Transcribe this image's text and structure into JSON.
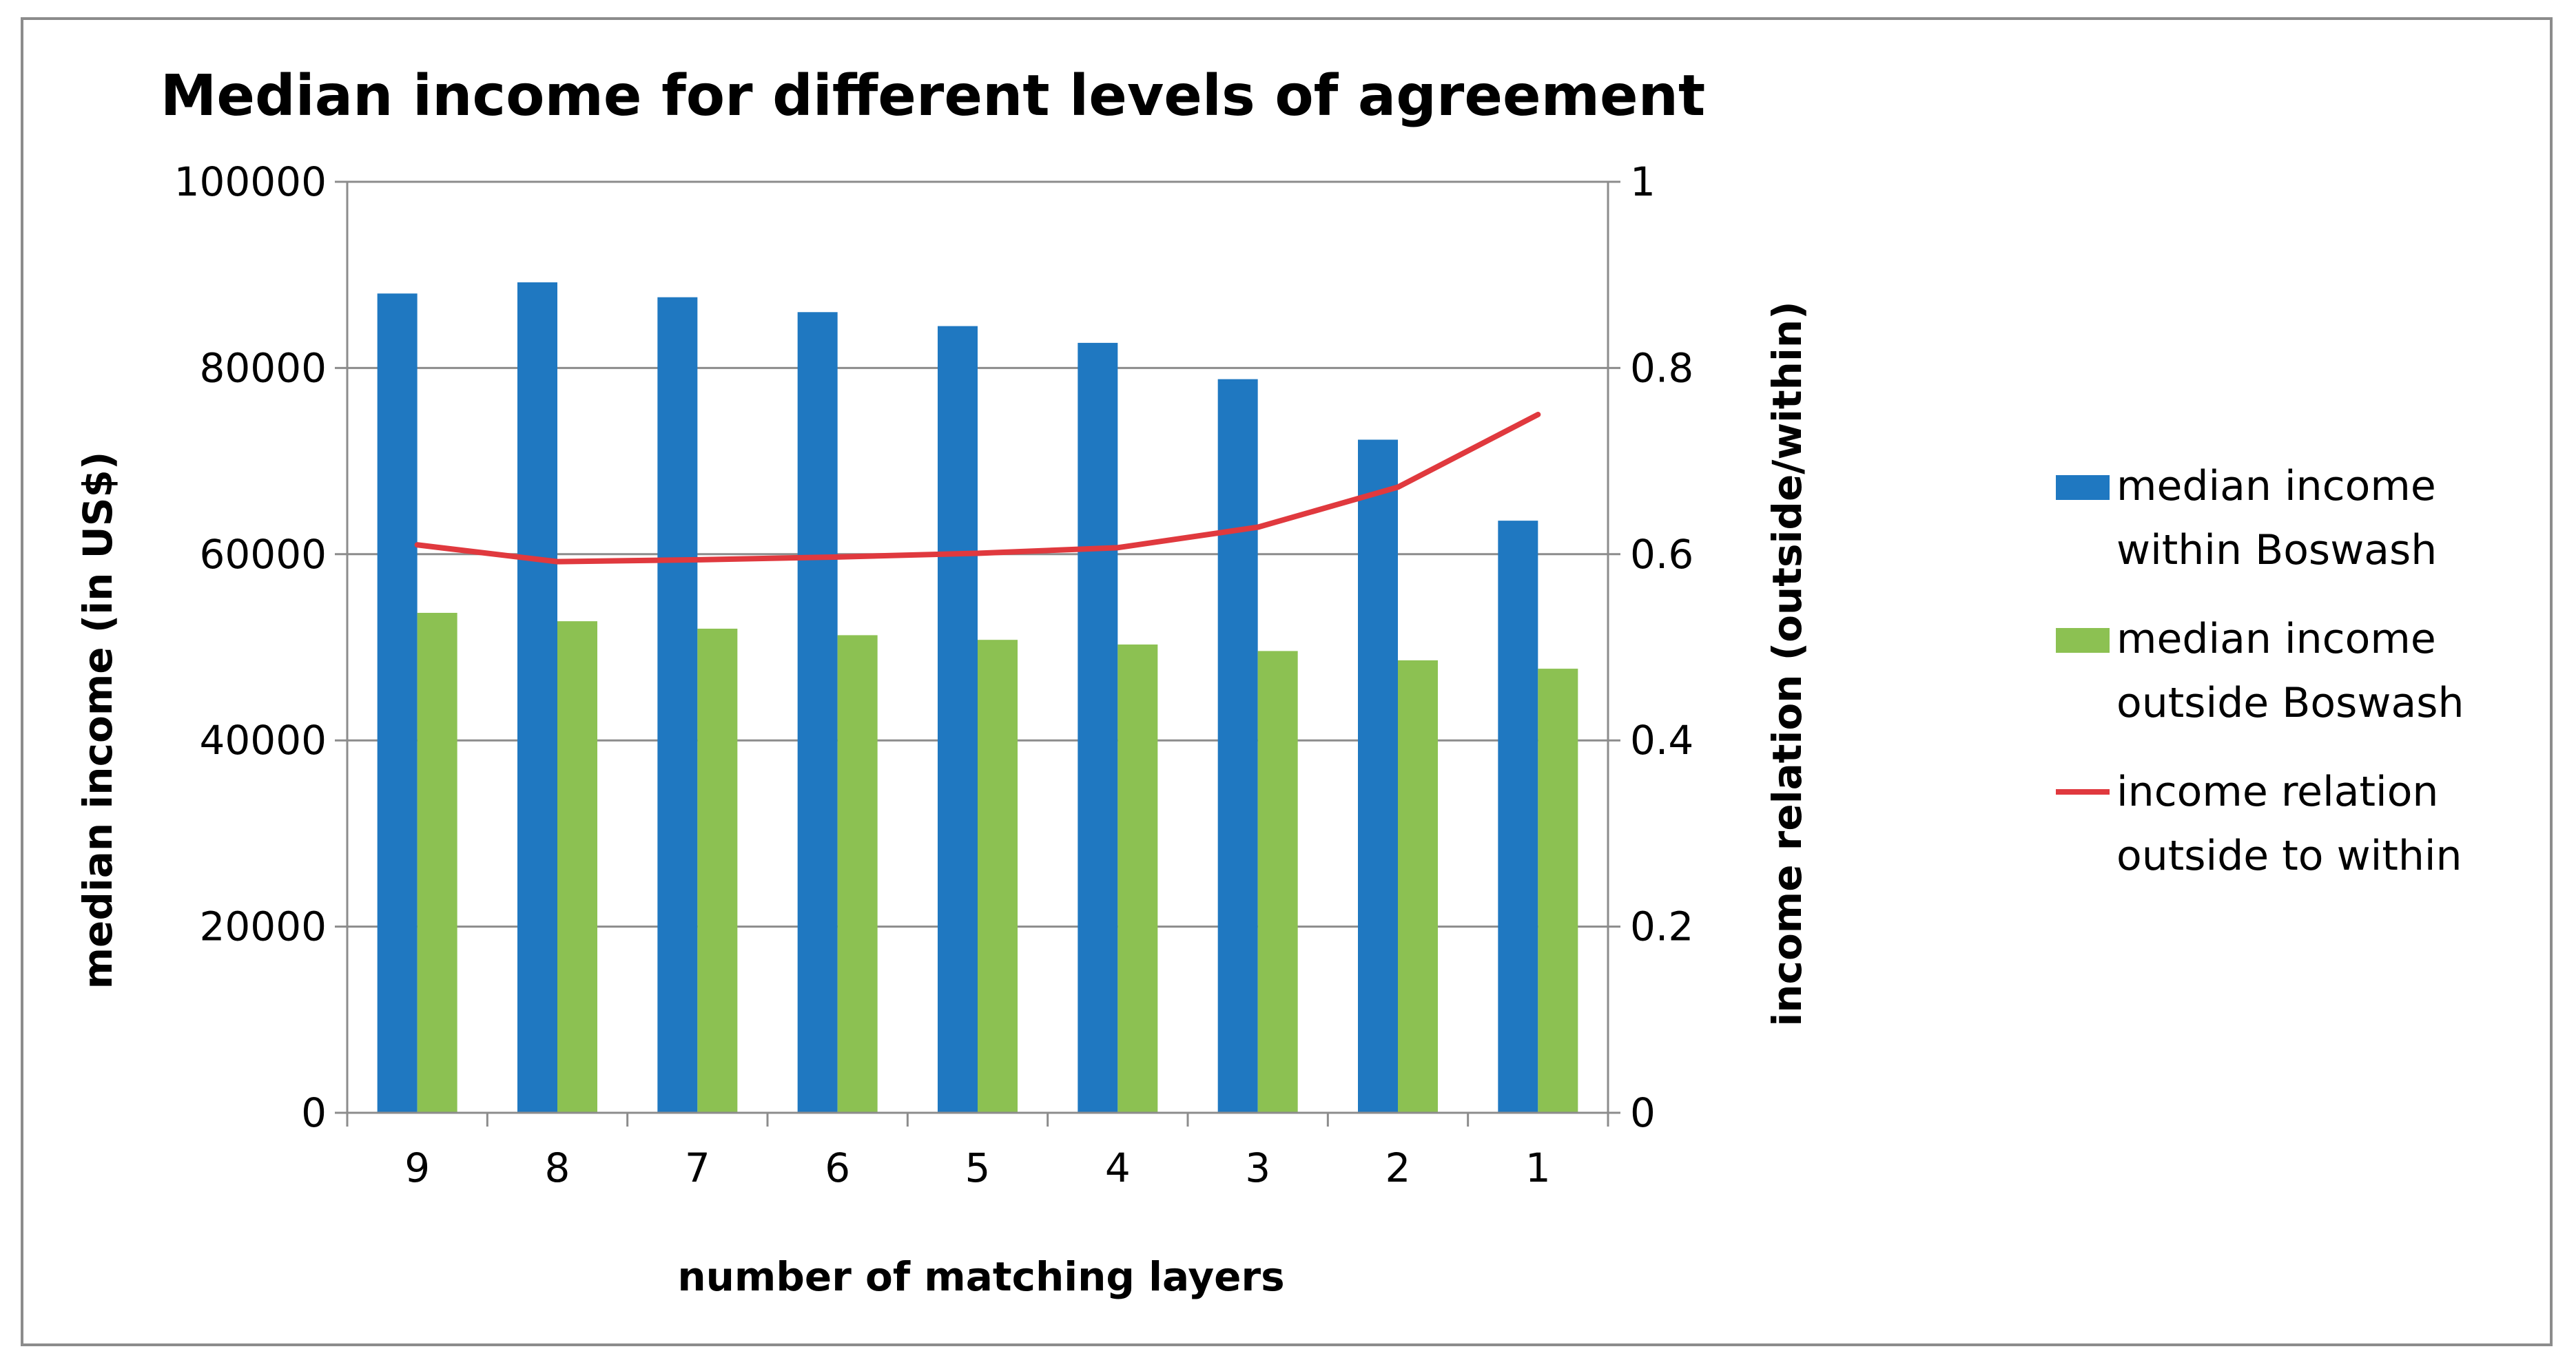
{
  "chart_data": {
    "type": "bar",
    "title": "Median income for different levels of agreement",
    "xlabel": "number of matching layers",
    "ylabel": "median income (in US$)",
    "y2label": "income relation (outside/within)",
    "categories": [
      "9",
      "8",
      "7",
      "6",
      "5",
      "4",
      "3",
      "2",
      "1"
    ],
    "ylim": [
      0,
      100000
    ],
    "y2lim": [
      0,
      1
    ],
    "yticks": [
      "0",
      "20000",
      "40000",
      "60000",
      "80000",
      "100000"
    ],
    "y2ticks": [
      "0",
      "0.2",
      "0.4",
      "0.6",
      "0.8",
      "1"
    ],
    "grid": "horizontal",
    "legend_position": "right",
    "series": [
      {
        "name": [
          "median income",
          "within Boswash"
        ],
        "type": "bar",
        "axis": "left",
        "color": "#1f78c1",
        "values": [
          88000,
          89200,
          87600,
          86000,
          84500,
          82700,
          78800,
          72300,
          63600
        ]
      },
      {
        "name": [
          "median income",
          "outside Boswash"
        ],
        "type": "bar",
        "axis": "left",
        "color": "#8cc152",
        "values": [
          53700,
          52800,
          52000,
          51300,
          50800,
          50300,
          49600,
          48600,
          47700
        ]
      },
      {
        "name": [
          "income relation",
          "outside to within"
        ],
        "type": "line",
        "axis": "right",
        "color": "#e0393e",
        "values": [
          0.61,
          0.592,
          0.594,
          0.597,
          0.601,
          0.607,
          0.629,
          0.672,
          0.75
        ]
      }
    ]
  }
}
